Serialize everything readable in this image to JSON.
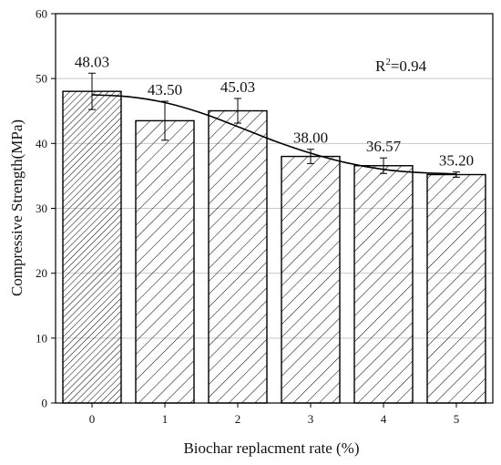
{
  "chart_data": {
    "type": "bar",
    "title": "",
    "xlabel": "Biochar replacment rate (%)",
    "ylabel": "Compressive Strength(MPa)",
    "categories": [
      "0",
      "1",
      "2",
      "3",
      "4",
      "5"
    ],
    "values": [
      48.03,
      43.5,
      45.03,
      38.0,
      36.57,
      35.2
    ],
    "value_labels": [
      "48.03",
      "43.50",
      "45.03",
      "38.00",
      "36.57",
      "35.20"
    ],
    "error": [
      2.8,
      3.0,
      1.9,
      1.1,
      1.2,
      0.4
    ],
    "ylim": [
      0,
      60
    ],
    "yticks": [
      "0",
      "10",
      "20",
      "30",
      "40",
      "50",
      "60"
    ],
    "trend_curve": {
      "type": "polynomial fit",
      "r2_base": "R",
      "r2_exponent": "2",
      "r2_value": "=0.94",
      "points": [
        [
          0,
          47.5
        ],
        [
          0.5,
          47.2
        ],
        [
          1,
          46.3
        ],
        [
          1.5,
          44.7
        ],
        [
          2,
          42.6
        ],
        [
          2.5,
          40.4
        ],
        [
          3,
          38.5
        ],
        [
          3.5,
          37.0
        ],
        [
          4,
          36.0
        ],
        [
          4.5,
          35.5
        ],
        [
          5,
          35.3
        ]
      ]
    },
    "bar_fill": "hatched",
    "first_bar_hatch": "dense",
    "grid": true,
    "legend": "none",
    "colors": {
      "bar_stroke": "#000000",
      "hatch": "#000000",
      "grid": "#c8c8c8",
      "curve": "#000000"
    }
  }
}
